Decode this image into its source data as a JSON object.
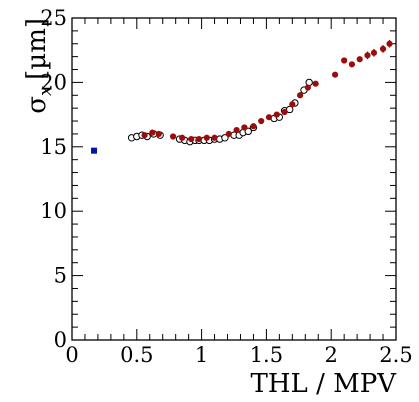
{
  "chart_data": {
    "type": "scatter",
    "title": "",
    "xlabel": "THL / MPV",
    "ylabel_symbol": "σ",
    "ylabel_subscript": "x",
    "ylabel_unit": "[µm]",
    "xlim": [
      0,
      2.5
    ],
    "ylim": [
      0,
      25
    ],
    "x_ticks": [
      0,
      0.5,
      1,
      1.5,
      2,
      2.5
    ],
    "x_tick_labels": [
      "0",
      "0.5",
      "1",
      "1.5",
      "2",
      "2.5"
    ],
    "y_ticks": [
      0,
      5,
      10,
      15,
      20,
      25
    ],
    "y_tick_labels": [
      "0",
      "5",
      "10",
      "15",
      "20",
      "25"
    ],
    "grid": false,
    "legend": "none",
    "series": [
      {
        "marker": "square",
        "color": "#00189e",
        "points": [
          [
            0.17,
            14.7
          ]
        ]
      },
      {
        "marker": "open-circle",
        "color": "#000000",
        "points": [
          [
            0.46,
            15.7
          ],
          [
            0.5,
            15.8
          ],
          [
            0.54,
            15.9
          ],
          [
            0.58,
            15.8
          ],
          [
            0.63,
            16.0
          ],
          [
            0.68,
            15.9
          ],
          [
            0.83,
            15.6
          ],
          [
            0.87,
            15.5
          ],
          [
            0.91,
            15.4
          ],
          [
            0.95,
            15.5
          ],
          [
            0.98,
            15.5
          ],
          [
            1.02,
            15.5
          ],
          [
            1.06,
            15.5
          ],
          [
            1.1,
            15.6
          ],
          [
            1.14,
            15.6
          ],
          [
            1.18,
            15.7
          ],
          [
            1.25,
            15.9
          ],
          [
            1.29,
            15.9
          ],
          [
            1.32,
            16.1
          ],
          [
            1.36,
            16.2
          ],
          [
            1.4,
            16.5
          ],
          [
            1.56,
            17.2
          ],
          [
            1.6,
            17.3
          ],
          [
            1.64,
            17.8
          ],
          [
            1.68,
            17.9
          ],
          [
            1.72,
            18.4
          ],
          [
            1.79,
            19.4
          ],
          [
            1.83,
            20.0
          ]
        ]
      },
      {
        "marker": "filled-circle",
        "color": "#9b0c0c",
        "points": [
          [
            0.56,
            15.9
          ],
          [
            0.62,
            16.1
          ],
          [
            0.67,
            16.0
          ],
          [
            0.78,
            15.8
          ],
          [
            0.85,
            15.7
          ],
          [
            0.92,
            15.6
          ],
          [
            0.98,
            15.6
          ],
          [
            1.04,
            15.7
          ],
          [
            1.1,
            15.7
          ],
          [
            1.21,
            16.0
          ],
          [
            1.27,
            16.3
          ],
          [
            1.33,
            16.5
          ],
          [
            1.4,
            16.6
          ],
          [
            1.46,
            17.0
          ],
          [
            1.52,
            17.3
          ],
          [
            1.58,
            17.5
          ],
          [
            1.64,
            17.7
          ],
          [
            1.7,
            18.3
          ],
          [
            1.76,
            19.0
          ],
          [
            1.82,
            19.6
          ],
          [
            1.88,
            19.9
          ],
          [
            2.03,
            20.6
          ],
          [
            2.1,
            21.7
          ],
          [
            2.16,
            21.4
          ],
          [
            2.22,
            21.8
          ],
          [
            2.28,
            22.1
          ],
          [
            2.33,
            22.3
          ],
          [
            2.4,
            22.6
          ],
          [
            2.45,
            23.0
          ]
        ],
        "errors": [
          0.1,
          0.1,
          0.1,
          0.1,
          0.1,
          0.1,
          0.1,
          0.1,
          0.1,
          0.1,
          0.1,
          0.1,
          0.1,
          0.1,
          0.1,
          0.1,
          0.1,
          0.2,
          0.2,
          0.2,
          0.2,
          0.2,
          0.2,
          0.2,
          0.2,
          0.3,
          0.3,
          0.3,
          0.3
        ]
      }
    ]
  }
}
